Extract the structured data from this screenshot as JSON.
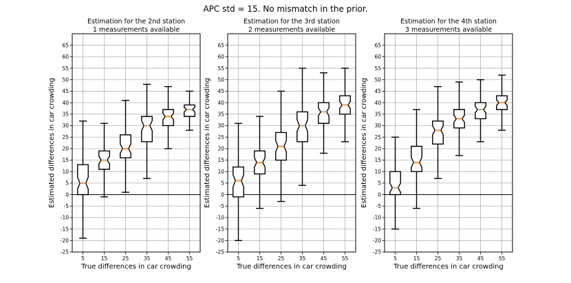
{
  "figure_title": "APC std = 15. No mismatch in the prior.",
  "chart_data": [
    {
      "type": "boxplot",
      "title": "Estimation for the 2nd station",
      "subtitle": "1 measurements available",
      "xlabel": "True differences in car crowding",
      "ylabel": "Estimated differences in car crowding",
      "ylim": [
        -25,
        70
      ],
      "yticks": [
        -25,
        -20,
        -15,
        -10,
        -5,
        0,
        5,
        10,
        15,
        20,
        25,
        30,
        35,
        40,
        45,
        50,
        55,
        60,
        65
      ],
      "categories": [
        "5",
        "15",
        "25",
        "35",
        "45",
        "55"
      ],
      "grid": true,
      "hline": 0,
      "boxes": [
        {
          "whislo": -19,
          "q1": 0,
          "med": 5,
          "q3": 13,
          "whishi": 32
        },
        {
          "whislo": -1,
          "q1": 11,
          "med": 15,
          "q3": 19,
          "whishi": 31
        },
        {
          "whislo": 1,
          "q1": 16,
          "med": 20,
          "q3": 26,
          "whishi": 41
        },
        {
          "whislo": 7,
          "q1": 23,
          "med": 30,
          "q3": 34,
          "whishi": 48
        },
        {
          "whislo": 20,
          "q1": 30,
          "med": 34,
          "q3": 37,
          "whishi": 47
        },
        {
          "whislo": 28,
          "q1": 34,
          "med": 37,
          "q3": 39,
          "whishi": 45
        }
      ]
    },
    {
      "type": "boxplot",
      "title": "Estimation for the 3rd station",
      "subtitle": "2 measurements available",
      "xlabel": "True differences in car crowding",
      "ylabel": "Estimated differences in car crowding",
      "ylim": [
        -25,
        70
      ],
      "yticks": [
        -25,
        -20,
        -15,
        -10,
        -5,
        0,
        5,
        10,
        15,
        20,
        25,
        30,
        35,
        40,
        45,
        50,
        55,
        60,
        65
      ],
      "categories": [
        "5",
        "15",
        "25",
        "35",
        "45",
        "55"
      ],
      "grid": true,
      "hline": 0,
      "boxes": [
        {
          "whislo": -20,
          "q1": -1,
          "med": 6,
          "q3": 12,
          "whishi": 31
        },
        {
          "whislo": -6,
          "q1": 9,
          "med": 14,
          "q3": 19,
          "whishi": 34
        },
        {
          "whislo": -3,
          "q1": 15,
          "med": 21,
          "q3": 27,
          "whishi": 45
        },
        {
          "whislo": 4,
          "q1": 23,
          "med": 30,
          "q3": 36,
          "whishi": 55
        },
        {
          "whislo": 18,
          "q1": 31,
          "med": 36,
          "q3": 40,
          "whishi": 53
        },
        {
          "whislo": 23,
          "q1": 35,
          "med": 39,
          "q3": 43,
          "whishi": 55
        }
      ]
    },
    {
      "type": "boxplot",
      "title": "Estimation for the 4th station",
      "subtitle": "3 measurements available",
      "xlabel": "True differences in car crowding",
      "ylabel": "Estimated differences in car crowding",
      "ylim": [
        -25,
        70
      ],
      "yticks": [
        -25,
        -20,
        -15,
        -10,
        -5,
        0,
        5,
        10,
        15,
        20,
        25,
        30,
        35,
        40,
        45,
        50,
        55,
        60,
        65
      ],
      "categories": [
        "5",
        "15",
        "25",
        "35",
        "45",
        "55"
      ],
      "grid": true,
      "hline": 0,
      "boxes": [
        {
          "whislo": -15,
          "q1": 0,
          "med": 3,
          "q3": 10,
          "whishi": 25
        },
        {
          "whislo": -6,
          "q1": 10,
          "med": 14,
          "q3": 21,
          "whishi": 37
        },
        {
          "whislo": 7,
          "q1": 22,
          "med": 28,
          "q3": 32,
          "whishi": 47
        },
        {
          "whislo": 17,
          "q1": 29,
          "med": 33,
          "q3": 37,
          "whishi": 49
        },
        {
          "whislo": 23,
          "q1": 33,
          "med": 37,
          "q3": 40,
          "whishi": 50
        },
        {
          "whislo": 28,
          "q1": 37,
          "med": 40,
          "q3": 43,
          "whishi": 52
        }
      ]
    }
  ],
  "colors": {
    "median": "#ff7f0e",
    "grid": "#b0b0b0",
    "box": "#000000"
  }
}
